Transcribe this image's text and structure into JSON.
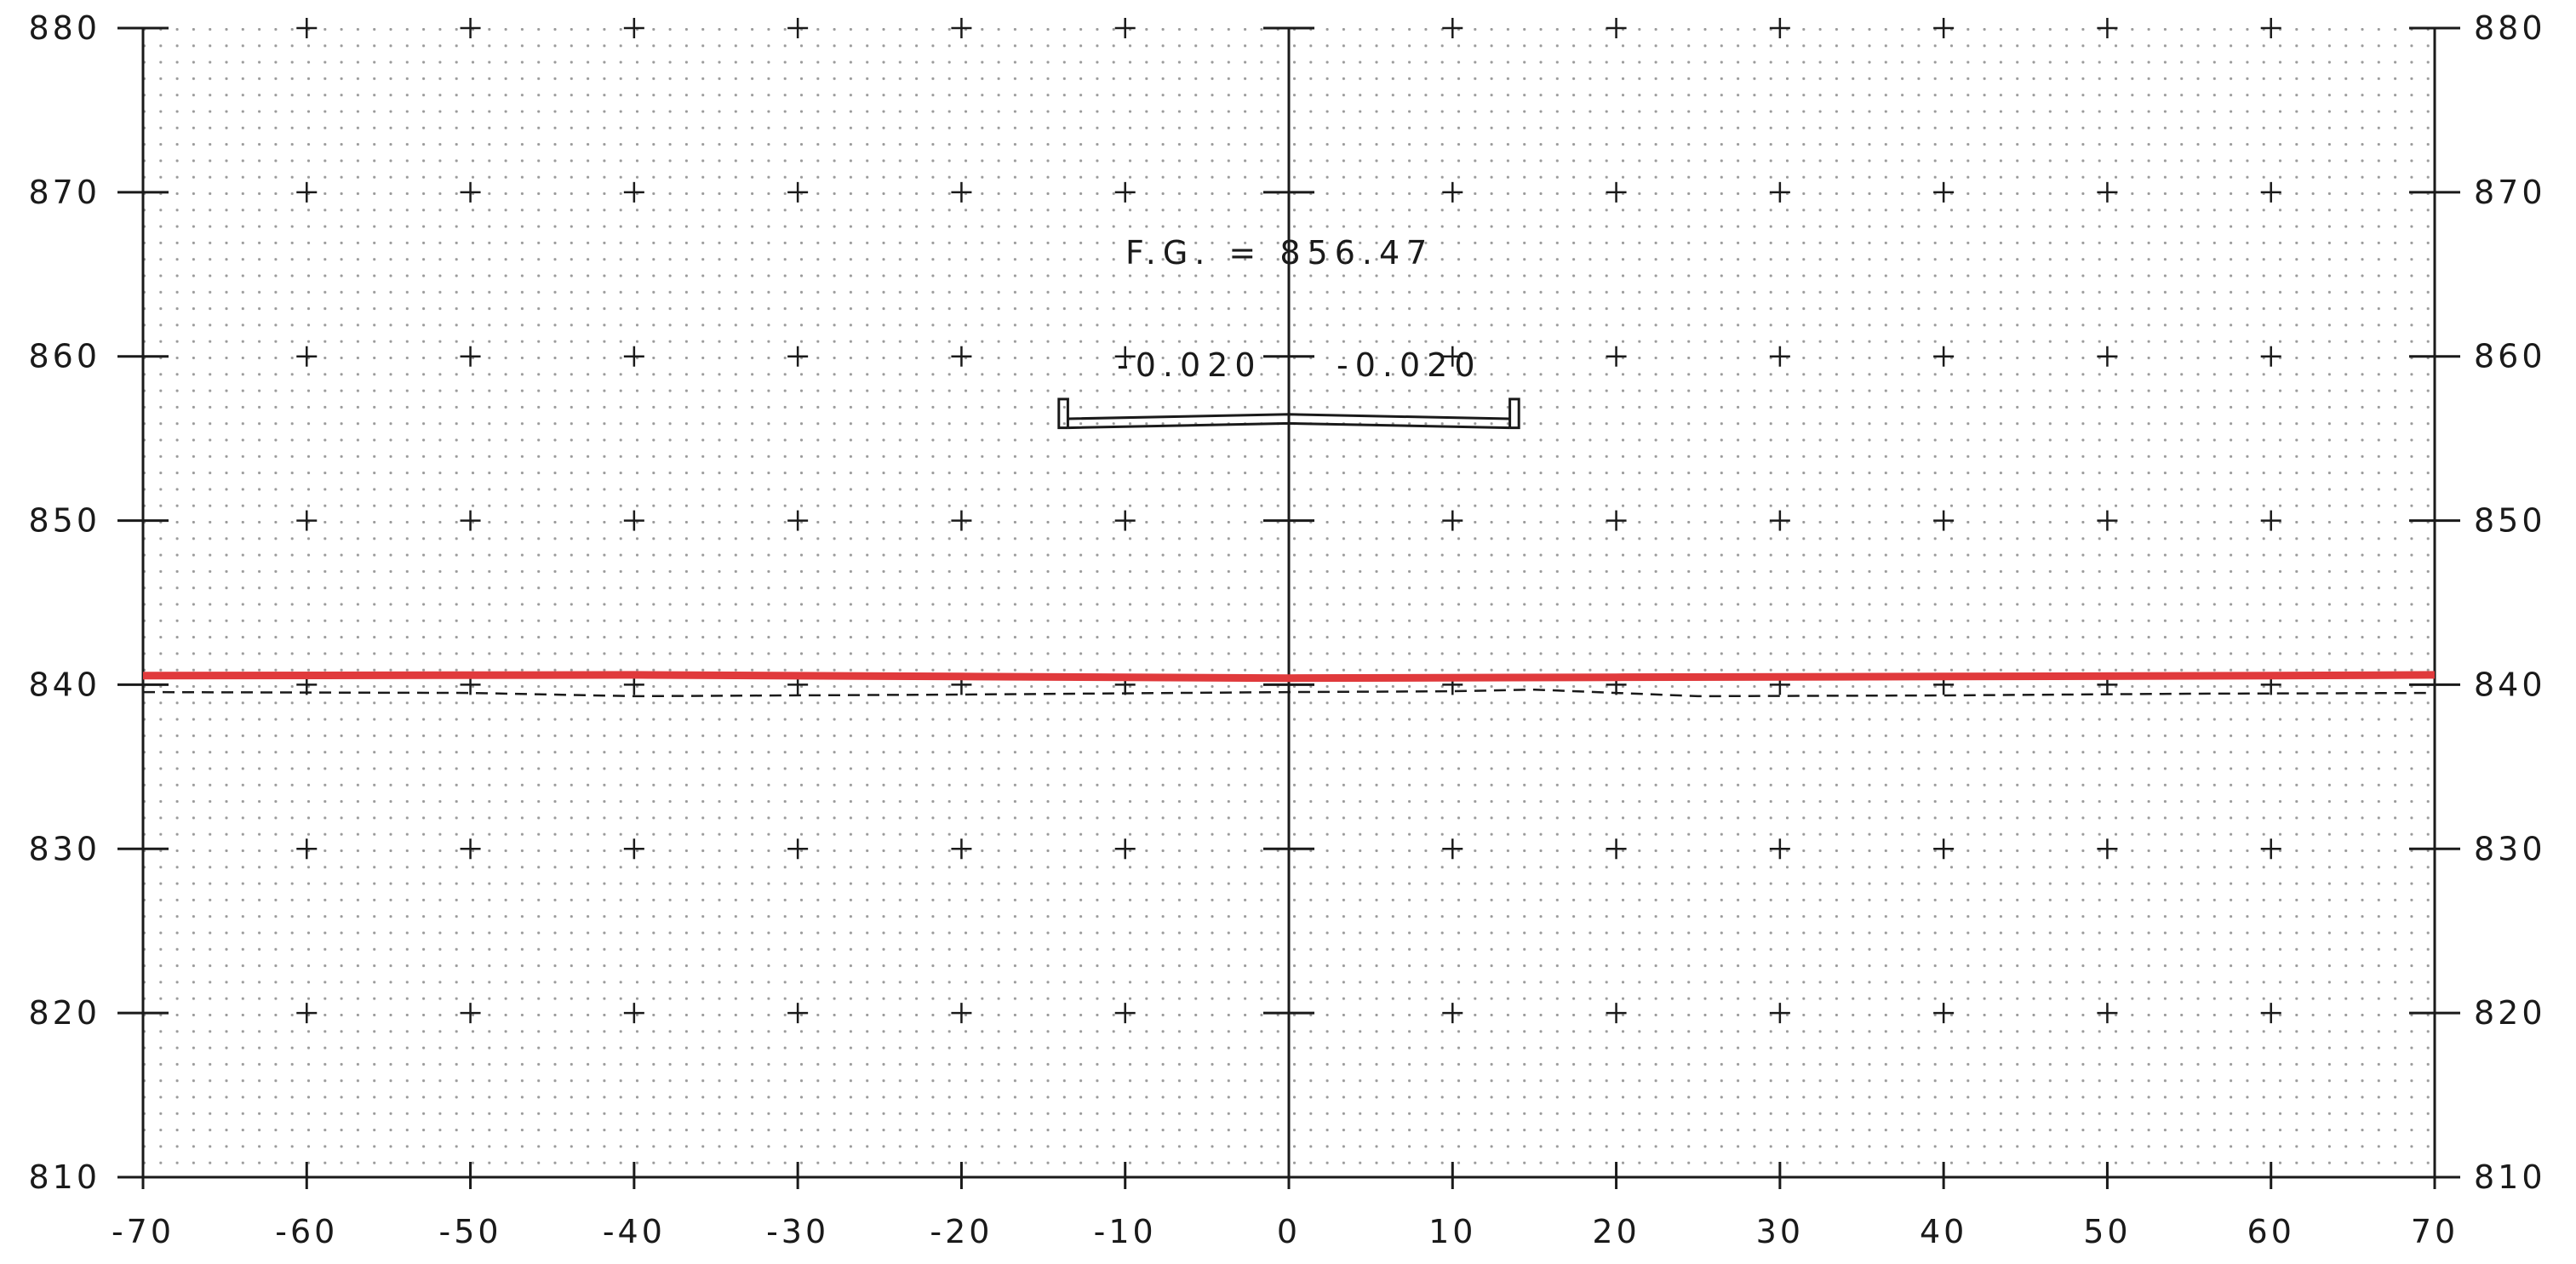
{
  "section": {
    "x_range": [
      -70,
      70
    ],
    "y_range": [
      810,
      880
    ],
    "x_step": 10,
    "y_step": 10,
    "x_ticks": [
      "-70",
      "-60",
      "-50",
      "-40",
      "-30",
      "-20",
      "-10",
      "0",
      "10",
      "20",
      "30",
      "40",
      "50",
      "60",
      "70"
    ],
    "y_ticks": [
      "810",
      "820",
      "830",
      "840",
      "850",
      "860",
      "870",
      "880"
    ],
    "finished_grade_label": "F.G. = 856.47",
    "finished_grade_value": 856.47,
    "left_slope_label": "-0.020",
    "right_slope_label": "-0.020",
    "roadway": {
      "half_width": 13.5,
      "crown_elevation": 856.47,
      "cross_slope": -0.02,
      "curb_height": 1.2
    },
    "existing_ground": {
      "color": "#e03a3c",
      "points": [
        [
          -70,
          840.55
        ],
        [
          -40,
          840.6
        ],
        [
          -20,
          840.5
        ],
        [
          0,
          840.4
        ],
        [
          20,
          840.45
        ],
        [
          40,
          840.5
        ],
        [
          60,
          840.55
        ],
        [
          70,
          840.6
        ]
      ]
    },
    "proposed_line": {
      "points": [
        [
          -70,
          839.55
        ],
        [
          -50,
          839.5
        ],
        [
          -40,
          839.3
        ],
        [
          -20,
          839.4
        ],
        [
          0,
          839.55
        ],
        [
          10,
          839.6
        ],
        [
          15,
          839.7
        ],
        [
          25,
          839.3
        ],
        [
          40,
          839.35
        ],
        [
          55,
          839.45
        ],
        [
          70,
          839.5
        ]
      ]
    },
    "colors": {
      "ink": "#1a1a1a",
      "grid_dots": "#9a9a9a"
    }
  }
}
